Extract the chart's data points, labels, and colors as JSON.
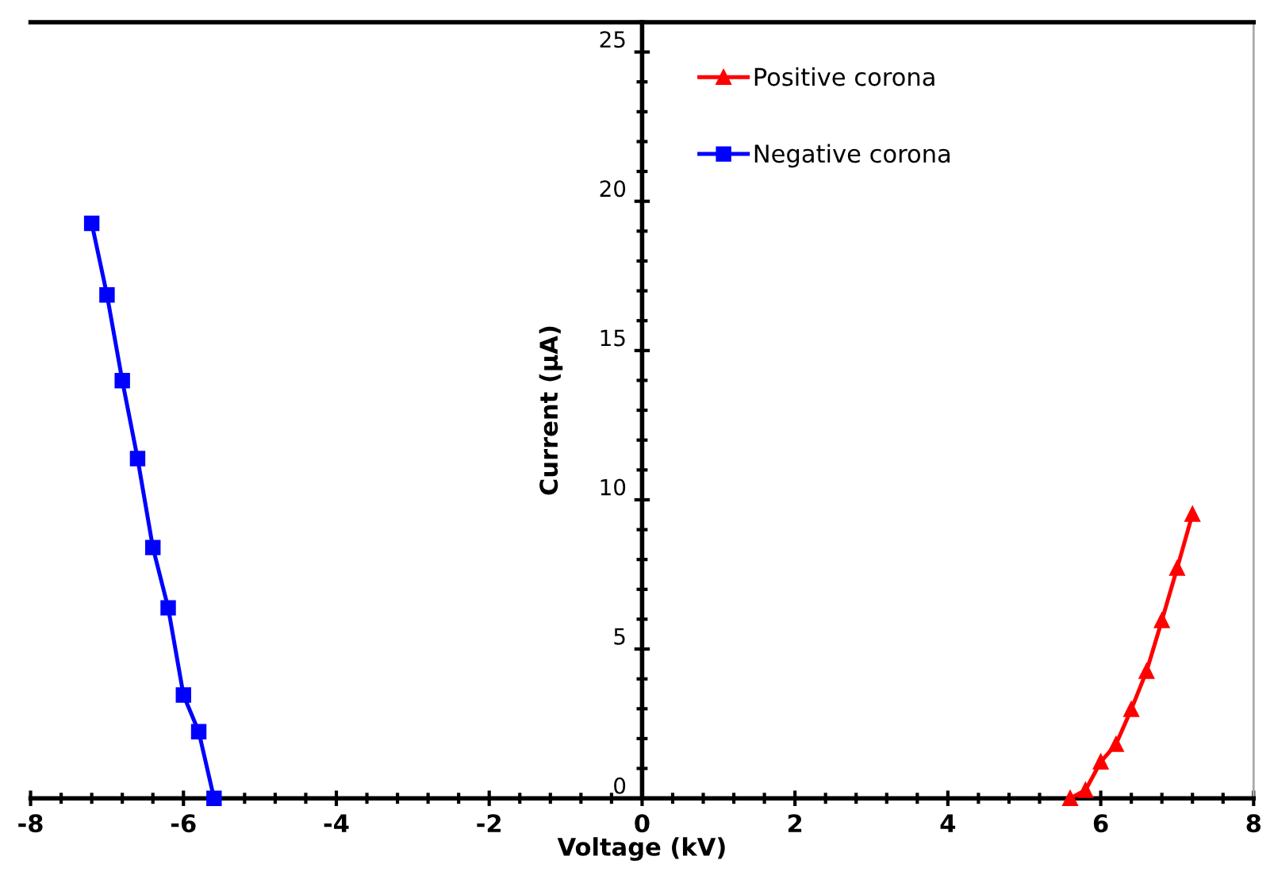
{
  "chart_data": {
    "type": "line",
    "xlabel": "Voltage (kV)",
    "ylabel": "Current (μA)",
    "xlim": [
      -8,
      8
    ],
    "ylim": [
      0,
      26
    ],
    "xticks": [
      -8,
      -6,
      -4,
      -2,
      0,
      2,
      4,
      6,
      8
    ],
    "yticks": [
      0,
      5,
      10,
      15,
      20,
      25
    ],
    "grid": false,
    "legend": "top",
    "line_style": "solid",
    "series": [
      {
        "name": "Positive corona",
        "color": "#ff0000",
        "marker": "triangle",
        "x": [
          5.6,
          5.8,
          6.0,
          6.2,
          6.4,
          6.6,
          6.8,
          7.0,
          7.2
        ],
        "values": [
          0,
          0.27,
          1.22,
          1.81,
          2.98,
          4.26,
          5.96,
          7.71,
          9.52
        ]
      },
      {
        "name": "Negative corona",
        "color": "#0000ff",
        "marker": "square",
        "x": [
          -7.2,
          -7.0,
          -6.8,
          -6.6,
          -6.4,
          -6.2,
          -6.0,
          -5.8,
          -5.6
        ],
        "values": [
          19.26,
          16.86,
          13.99,
          11.38,
          8.4,
          6.38,
          3.46,
          2.23,
          0
        ]
      }
    ]
  }
}
